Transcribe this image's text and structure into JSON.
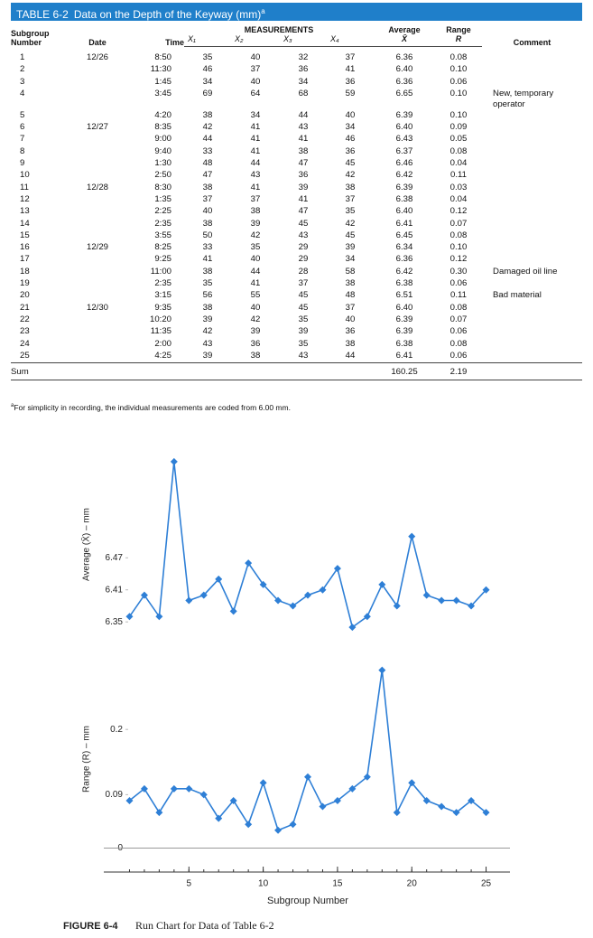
{
  "table": {
    "label": "TABLE 6-2",
    "title": "Data on the Depth of the Keyway (mm)",
    "title_note": "a",
    "columns": [
      "Subgroup Number",
      "Date",
      "Time",
      "X₁",
      "X₂",
      "X₃",
      "X₄",
      "Average",
      "Range",
      "Comment"
    ],
    "group_header": "MEASUREMENTS",
    "average_symbol": "X̄",
    "range_symbol": "R",
    "rows": [
      [
        "1",
        "12/26",
        "8:50",
        "35",
        "40",
        "32",
        "37",
        "6.36",
        "0.08",
        null
      ],
      [
        "2",
        null,
        "11:30",
        "46",
        "37",
        "36",
        "41",
        "6.40",
        "0.10",
        null
      ],
      [
        "3",
        null,
        "1:45",
        "34",
        "40",
        "34",
        "36",
        "6.36",
        "0.06",
        null
      ],
      [
        "4",
        null,
        "3:45",
        "69",
        "64",
        "68",
        "59",
        "6.65",
        "0.10",
        "New, temporary operator"
      ],
      [
        "5",
        null,
        "4:20",
        "38",
        "34",
        "44",
        "40",
        "6.39",
        "0.10",
        null
      ],
      [
        "6",
        "12/27",
        "8:35",
        "42",
        "41",
        "43",
        "34",
        "6.40",
        "0.09",
        null
      ],
      [
        "7",
        null,
        "9:00",
        "44",
        "41",
        "41",
        "46",
        "6.43",
        "0.05",
        null
      ],
      [
        "8",
        null,
        "9:40",
        "33",
        "41",
        "38",
        "36",
        "6.37",
        "0.08",
        null
      ],
      [
        "9",
        null,
        "1:30",
        "48",
        "44",
        "47",
        "45",
        "6.46",
        "0.04",
        null
      ],
      [
        "10",
        null,
        "2:50",
        "47",
        "43",
        "36",
        "42",
        "6.42",
        "0.11",
        null
      ],
      [
        "11",
        "12/28",
        "8:30",
        "38",
        "41",
        "39",
        "38",
        "6.39",
        "0.03",
        null
      ],
      [
        "12",
        null,
        "1:35",
        "37",
        "37",
        "41",
        "37",
        "6.38",
        "0.04",
        null
      ],
      [
        "13",
        null,
        "2:25",
        "40",
        "38",
        "47",
        "35",
        "6.40",
        "0.12",
        null
      ],
      [
        "14",
        null,
        "2:35",
        "38",
        "39",
        "45",
        "42",
        "6.41",
        "0.07",
        null
      ],
      [
        "15",
        null,
        "3:55",
        "50",
        "42",
        "43",
        "45",
        "6.45",
        "0.08",
        null
      ],
      [
        "16",
        "12/29",
        "8:25",
        "33",
        "35",
        "29",
        "39",
        "6.34",
        "0.10",
        null
      ],
      [
        "17",
        null,
        "9:25",
        "41",
        "40",
        "29",
        "34",
        "6.36",
        "0.12",
        null
      ],
      [
        "18",
        null,
        "11:00",
        "38",
        "44",
        "28",
        "58",
        "6.42",
        "0.30",
        "Damaged oil line"
      ],
      [
        "19",
        null,
        "2:35",
        "35",
        "41",
        "37",
        "38",
        "6.38",
        "0.06",
        null
      ],
      [
        "20",
        null,
        "3:15",
        "56",
        "55",
        "45",
        "48",
        "6.51",
        "0.11",
        "Bad material"
      ],
      [
        "21",
        "12/30",
        "9:35",
        "38",
        "40",
        "45",
        "37",
        "6.40",
        "0.08",
        null
      ],
      [
        "22",
        null,
        "10:20",
        "39",
        "42",
        "35",
        "40",
        "6.39",
        "0.07",
        null
      ],
      [
        "23",
        null,
        "11:35",
        "42",
        "39",
        "39",
        "36",
        "6.39",
        "0.06",
        null
      ],
      [
        "24",
        null,
        "2:00",
        "43",
        "36",
        "35",
        "38",
        "6.38",
        "0.08",
        null
      ],
      [
        "25",
        null,
        "4:25",
        "39",
        "38",
        "43",
        "44",
        "6.41",
        "0.06",
        null
      ]
    ],
    "sum": {
      "label": "Sum",
      "average": "160.25",
      "range": "2.19"
    },
    "footnote": {
      "mark": "a",
      "text": "For simplicity in recording, the individual measurements are coded from 6.00 mm."
    }
  },
  "chart_data": [
    {
      "type": "line",
      "ylabel": "Average (X̄) – mm",
      "color": "#2e7fd6",
      "x": [
        1,
        2,
        3,
        4,
        5,
        6,
        7,
        8,
        9,
        10,
        11,
        12,
        13,
        14,
        15,
        16,
        17,
        18,
        19,
        20,
        21,
        22,
        23,
        24,
        25
      ],
      "values": [
        6.36,
        6.4,
        6.36,
        6.65,
        6.39,
        6.4,
        6.43,
        6.37,
        6.46,
        6.42,
        6.39,
        6.38,
        6.4,
        6.41,
        6.45,
        6.34,
        6.36,
        6.42,
        6.38,
        6.51,
        6.4,
        6.39,
        6.39,
        6.38,
        6.41
      ],
      "xlim": [
        0,
        26
      ],
      "ylim": [
        6.33,
        6.66
      ],
      "yticks": [
        6.35,
        6.41,
        6.47
      ]
    },
    {
      "type": "line",
      "ylabel": "Range (R) – mm",
      "xlabel": "Subgroup Number",
      "color": "#2e7fd6",
      "x": [
        1,
        2,
        3,
        4,
        5,
        6,
        7,
        8,
        9,
        10,
        11,
        12,
        13,
        14,
        15,
        16,
        17,
        18,
        19,
        20,
        21,
        22,
        23,
        24,
        25
      ],
      "values": [
        0.08,
        0.1,
        0.06,
        0.1,
        0.1,
        0.09,
        0.05,
        0.08,
        0.04,
        0.11,
        0.03,
        0.04,
        0.12,
        0.07,
        0.08,
        0.1,
        0.12,
        0.3,
        0.06,
        0.11,
        0.08,
        0.07,
        0.06,
        0.08,
        0.06
      ],
      "xlim": [
        0,
        26
      ],
      "ylim": [
        -0.01,
        0.31
      ],
      "yticks": [
        0,
        0.09,
        0.2
      ],
      "xticks": [
        5,
        10,
        15,
        20,
        25
      ]
    }
  ],
  "figure": {
    "label": "FIGURE 6-4",
    "caption": "Run Chart for Data of Table 6-2"
  }
}
